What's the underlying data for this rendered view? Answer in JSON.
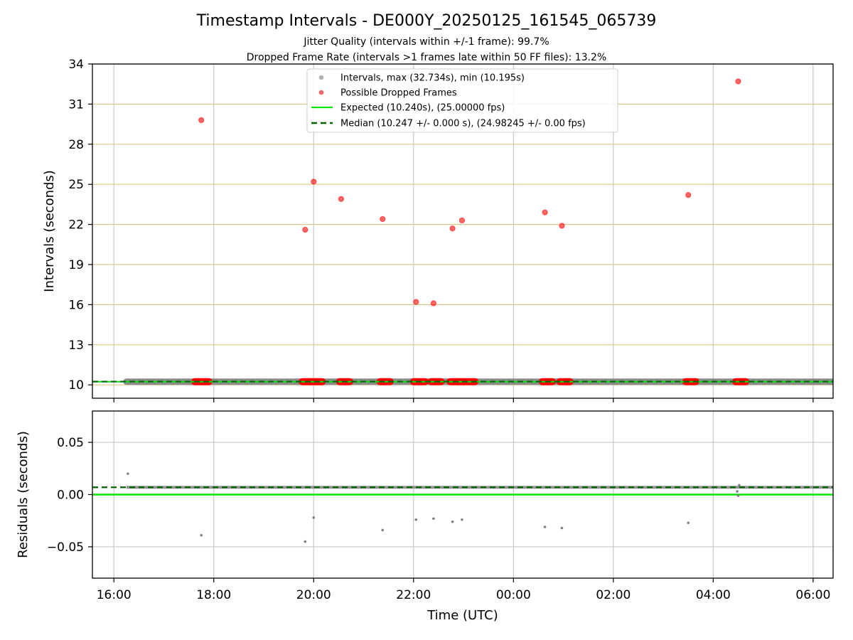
{
  "chart_data": [
    {
      "type": "scatter",
      "title": "Timestamp Intervals - DE000Y_20250125_161545_065739",
      "subtitle_lines": [
        "Jitter Quality (intervals within +/-1 frame): 99.7%",
        "Dropped Frame Rate (intervals >1 frames late within 50 FF files): 13.2%"
      ],
      "xlabel": "",
      "ylabel": "Intervals (seconds)",
      "x_unit": "hours since 16:00 UTC (16:00 = 0)",
      "xlim": [
        -0.43,
        14.4
      ],
      "ylim": [
        9,
        34
      ],
      "yticks": [
        "10",
        "13",
        "16",
        "19",
        "22",
        "25",
        "28",
        "31",
        "34"
      ],
      "grid": true,
      "legend_position": "upper center",
      "legend": [
        "Intervals, max (32.734s), min (10.195s)",
        "Possible Dropped Frames",
        "Expected (10.240s), (25.00000 fps)",
        "Median (10.247 +/- 0.000 s), (24.98245 +/- 0.00 fps)"
      ],
      "series": [
        {
          "name": "Intervals, max (32.734s), min (10.195s)",
          "color": "#808080",
          "band": {
            "x_start": 0.25,
            "x_end": 14.4,
            "y": 10.24
          }
        },
        {
          "name": "Possible Dropped Frames",
          "color": "#ff0000",
          "points": [
            [
              1.75,
              29.8
            ],
            [
              3.83,
              21.6
            ],
            [
              4.0,
              25.2
            ],
            [
              4.55,
              23.9
            ],
            [
              5.38,
              22.4
            ],
            [
              6.05,
              16.2
            ],
            [
              6.4,
              16.1
            ],
            [
              6.78,
              21.7
            ],
            [
              6.97,
              22.3
            ],
            [
              8.63,
              22.9
            ],
            [
              8.97,
              21.9
            ],
            [
              11.5,
              24.2
            ],
            [
              12.5,
              32.7
            ]
          ],
          "low_clusters": [
            [
              1.62,
              1.9
            ],
            [
              3.77,
              4.17
            ],
            [
              4.52,
              4.72
            ],
            [
              5.33,
              5.53
            ],
            [
              6.0,
              6.23
            ],
            [
              6.35,
              6.55
            ],
            [
              6.73,
              7.23
            ],
            [
              8.58,
              8.78
            ],
            [
              8.93,
              9.13
            ],
            [
              11.45,
              11.65
            ],
            [
              12.45,
              12.65
            ]
          ]
        },
        {
          "name": "Expected (10.240s), (25.00000 fps)",
          "color": "#00e600",
          "y": 10.24
        },
        {
          "name": "Median (10.247 +/- 0.000 s), (24.98245 +/- 0.00 fps)",
          "color": "#006400",
          "y": 10.247
        }
      ]
    },
    {
      "type": "scatter",
      "title": "",
      "xlabel": "Time (UTC)",
      "ylabel": "Residuals (seconds)",
      "x_unit": "hours since 16:00 UTC (16:00 = 0)",
      "xlim": [
        -0.43,
        14.4
      ],
      "ylim": [
        -0.08,
        0.08
      ],
      "xticks": [
        "16:00",
        "18:00",
        "20:00",
        "22:00",
        "00:00",
        "02:00",
        "04:00",
        "06:00"
      ],
      "yticks": [
        "−0.05",
        "0.00",
        "0.05"
      ],
      "grid": true,
      "series": [
        {
          "name": "",
          "color": "#808080",
          "points": [
            [
              0.28,
              0.02
            ],
            [
              1.75,
              -0.039
            ],
            [
              3.83,
              -0.045
            ],
            [
              4.0,
              -0.022
            ],
            [
              5.38,
              -0.034
            ],
            [
              6.05,
              -0.024
            ],
            [
              6.4,
              -0.023
            ],
            [
              6.78,
              -0.026
            ],
            [
              6.97,
              -0.024
            ],
            [
              8.63,
              -0.031
            ],
            [
              8.97,
              -0.032
            ],
            [
              11.5,
              -0.027
            ],
            [
              12.52,
              0.009
            ],
            [
              12.48,
              0.003
            ],
            [
              12.5,
              -0.001
            ]
          ],
          "band": {
            "x_start": 0.25,
            "x_end": 14.4,
            "y": 0.007
          }
        },
        {
          "name": "",
          "color": "#00e600",
          "y": 0.0
        },
        {
          "name": "",
          "color": "#006400",
          "y": 0.007
        }
      ]
    }
  ]
}
